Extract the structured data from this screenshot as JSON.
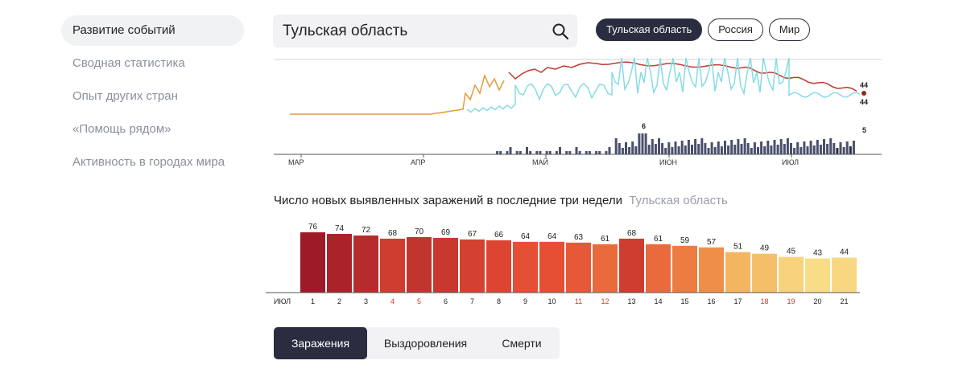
{
  "sidebar": {
    "items": [
      {
        "label": "Развитие событий",
        "active": true
      },
      {
        "label": "Сводная статистика"
      },
      {
        "label": "Опыт других стран"
      },
      {
        "label": "«Помощь рядом»"
      },
      {
        "label": "Активность в городах мира"
      }
    ]
  },
  "search": {
    "value": "Тульская область",
    "icon": "search-icon"
  },
  "regions": [
    {
      "label": "Тульская область",
      "active": true
    },
    {
      "label": "Россия"
    },
    {
      "label": "Мир"
    }
  ],
  "timeline_chart": {
    "months": [
      "МАР",
      "АПР",
      "МАЙ",
      "ИЮН",
      "ИЮЛ"
    ],
    "line_end_label_red": "44",
    "line_end_label_cyan": "44",
    "bars_peak_label": "6",
    "bars_end_label": "5",
    "colors": {
      "red": "#c0392b",
      "orange": "#e59a3b",
      "cyan": "#86dbe4",
      "bars": "#4a4f6d",
      "bars_dark": "#2a2d3f"
    }
  },
  "chart_data": {
    "type": "bar",
    "title": "Число новых выявленных заражений в последние три недели",
    "subtitle": "Тульская область",
    "month_label": "ИЮЛ",
    "categories": [
      "1",
      "2",
      "3",
      "4",
      "5",
      "6",
      "7",
      "8",
      "9",
      "10",
      "11",
      "12",
      "13",
      "14",
      "15",
      "16",
      "17",
      "18",
      "19",
      "20",
      "21"
    ],
    "values": [
      76,
      74,
      72,
      68,
      70,
      69,
      67,
      66,
      64,
      64,
      63,
      61,
      68,
      61,
      59,
      57,
      51,
      49,
      45,
      43,
      44
    ],
    "weekend_categories": [
      "4",
      "5",
      "11",
      "12",
      "18",
      "19"
    ],
    "ylim": [
      0,
      76
    ]
  },
  "tabs": [
    {
      "label": "Заражения",
      "active": true
    },
    {
      "label": "Выздоровления"
    },
    {
      "label": "Смерти"
    }
  ]
}
